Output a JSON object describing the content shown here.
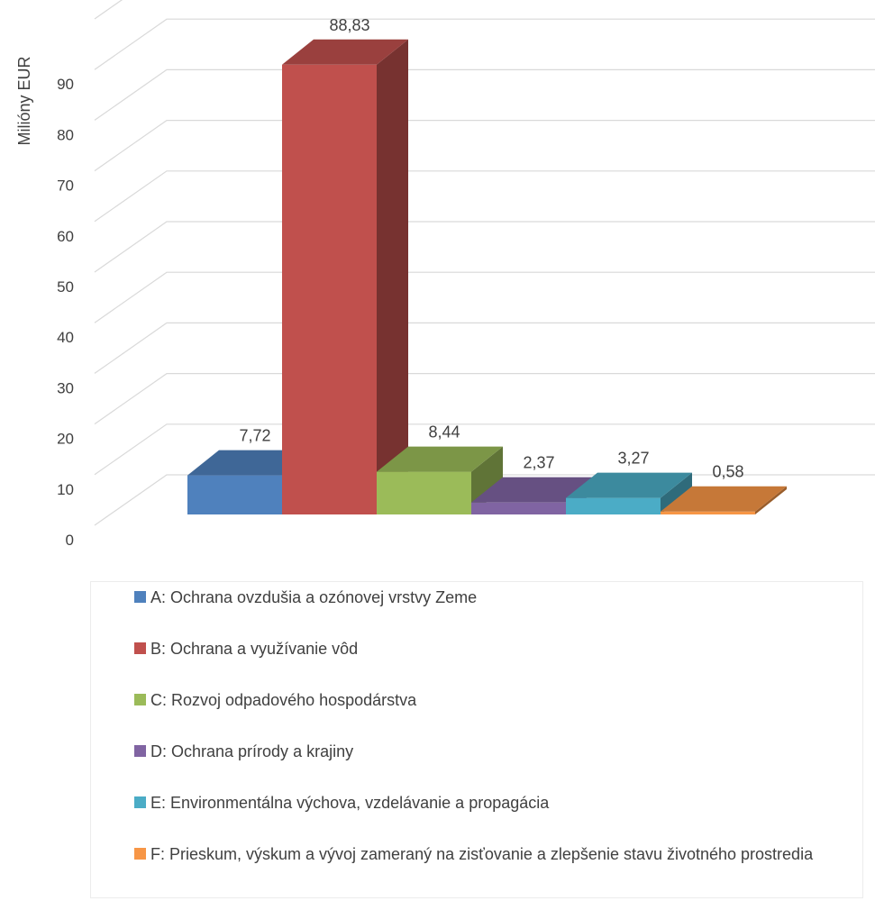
{
  "chart_data": {
    "type": "bar",
    "three_d": true,
    "ylabel": "Milióny EUR",
    "ylim": [
      0,
      100
    ],
    "yticks": [
      0,
      10,
      20,
      30,
      40,
      50,
      60,
      70,
      80,
      90
    ],
    "grid": true,
    "legend_position": "bottom",
    "categories": [
      "A: Ochrana ovzdušia a ozónovej vrstvy Zeme",
      "B: Ochrana a využívanie vôd",
      "C: Rozvoj odpadového hospodárstva",
      "D: Ochrana prírody a krajiny",
      "E: Environmentálna výchova, vzdelávanie a propagácia",
      "F: Prieskum, výskum a vývoj zameraný na zisťovanie a zlepšenie stavu životného prostredia"
    ],
    "values": [
      7.72,
      88.83,
      8.44,
      2.37,
      3.27,
      0.58
    ],
    "data_labels": [
      "7,72",
      "88,83",
      "8,44",
      "2,37",
      "3,27",
      "0,58"
    ],
    "colors": [
      "#4F81BD",
      "#C0504D",
      "#9BBB59",
      "#8064A2",
      "#4BACC6",
      "#F79646"
    ]
  }
}
